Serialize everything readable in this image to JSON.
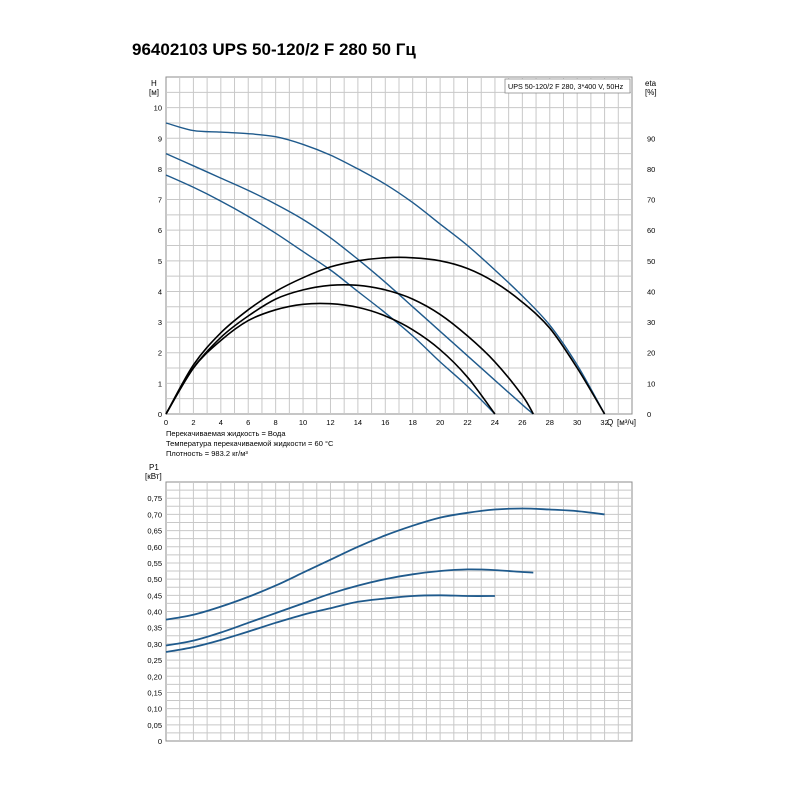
{
  "header": {
    "title": "96402103 UPS 50-120/2 F 280 50 Гц"
  },
  "colors": {
    "head_curve": "#1f5a8c",
    "efficiency_curve": "#000000",
    "power_curve": "#1f5a8c",
    "grid": "#c8c8c8"
  },
  "chart_data": [
    {
      "type": "line",
      "title": "96402103 UPS 50-120/2 F 280 50 Гц",
      "legend_box": "UPS 50-120/2 F 280, 3*400 V, 50Hz",
      "ylabel_left": [
        "H",
        "[м]"
      ],
      "ylabel_right": [
        "eta",
        "[%]"
      ],
      "xlabel": [
        "Q",
        "[м³/ч]"
      ],
      "xlim": [
        0,
        34
      ],
      "ylim": [
        0,
        11
      ],
      "ylim_right": [
        0,
        110
      ],
      "x_ticks": [
        "0",
        "2",
        "4",
        "6",
        "8",
        "10",
        "12",
        "14",
        "16",
        "18",
        "20",
        "22",
        "24",
        "26",
        "28",
        "30",
        "32"
      ],
      "y_ticks": [
        "0",
        "1",
        "2",
        "3",
        "4",
        "5",
        "6",
        "7",
        "8",
        "9",
        "10"
      ],
      "y_right_ticks": [
        "0",
        "10",
        "20",
        "30",
        "40",
        "50",
        "60",
        "70",
        "80",
        "90"
      ],
      "grid": true,
      "info_lines": [
        "Перекачиваемая жидкость = Вода",
        "Температура перекачиваемой жидкости = 60 °C",
        "Плотность = 983.2 кг/м³"
      ],
      "series": [
        {
          "kind": "head",
          "x": [
            0,
            2,
            4,
            6,
            8,
            10,
            12,
            14,
            16,
            18,
            20,
            22,
            24,
            26,
            28,
            30,
            32
          ],
          "y": [
            9.5,
            9.25,
            9.2,
            9.15,
            9.05,
            8.8,
            8.45,
            8.0,
            7.5,
            6.9,
            6.2,
            5.5,
            4.7,
            3.85,
            2.9,
            1.6,
            0
          ]
        },
        {
          "kind": "head",
          "x": [
            0,
            2,
            4,
            6,
            8,
            10,
            12,
            14,
            16,
            18,
            20,
            22,
            24,
            26,
            26.8
          ],
          "y": [
            8.5,
            8.1,
            7.7,
            7.3,
            6.85,
            6.35,
            5.75,
            5.05,
            4.3,
            3.5,
            2.7,
            1.9,
            1.1,
            0.3,
            0
          ]
        },
        {
          "kind": "head",
          "x": [
            0,
            2,
            4,
            6,
            8,
            10,
            12,
            14,
            16,
            18,
            20,
            22,
            24
          ],
          "y": [
            7.8,
            7.4,
            6.95,
            6.45,
            5.9,
            5.3,
            4.7,
            4.0,
            3.3,
            2.55,
            1.7,
            0.9,
            0
          ]
        },
        {
          "kind": "efficiency",
          "x": [
            0,
            2,
            4,
            6,
            8,
            10,
            12,
            14,
            16,
            18,
            20,
            22,
            24,
            26,
            28,
            30,
            32
          ],
          "y": [
            0,
            16,
            26.5,
            34,
            40,
            44.5,
            48,
            50,
            51,
            51,
            50,
            47.5,
            43,
            36.5,
            28,
            15,
            0
          ]
        },
        {
          "kind": "efficiency",
          "x": [
            0,
            2,
            4,
            6,
            8,
            10,
            12,
            14,
            16,
            18,
            20,
            22,
            24,
            26,
            26.8
          ],
          "y": [
            0,
            15,
            25,
            32,
            37.5,
            40.5,
            42,
            42,
            40.5,
            37.5,
            32.5,
            25.5,
            17,
            6,
            0
          ]
        },
        {
          "kind": "efficiency",
          "x": [
            0,
            2,
            4,
            6,
            8,
            10,
            12,
            14,
            16,
            18,
            20,
            22,
            24
          ],
          "y": [
            0,
            15,
            24,
            30.5,
            34,
            35.8,
            36,
            34.8,
            32,
            27.5,
            21,
            12,
            0
          ]
        }
      ]
    },
    {
      "type": "line",
      "ylabel": [
        "P1",
        "[кВт]"
      ],
      "xlim": [
        0,
        34
      ],
      "ylim": [
        0,
        0.8
      ],
      "y_ticks": [
        "0",
        "0,05",
        "0,10",
        "0,15",
        "0,20",
        "0,25",
        "0,30",
        "0,35",
        "0,40",
        "0,45",
        "0,50",
        "0,55",
        "0,60",
        "0,65",
        "0,70",
        "0,75"
      ],
      "grid": true,
      "series": [
        {
          "kind": "power",
          "x": [
            0,
            2,
            4,
            6,
            8,
            10,
            12,
            14,
            16,
            18,
            20,
            22,
            24,
            26,
            28,
            30,
            32
          ],
          "y": [
            0.375,
            0.39,
            0.415,
            0.445,
            0.48,
            0.52,
            0.56,
            0.6,
            0.635,
            0.665,
            0.69,
            0.705,
            0.715,
            0.718,
            0.715,
            0.71,
            0.7
          ]
        },
        {
          "kind": "power",
          "x": [
            0,
            2,
            4,
            6,
            8,
            10,
            12,
            14,
            16,
            18,
            20,
            22,
            24,
            26,
            26.8
          ],
          "y": [
            0.295,
            0.31,
            0.335,
            0.365,
            0.395,
            0.425,
            0.455,
            0.48,
            0.5,
            0.515,
            0.525,
            0.53,
            0.528,
            0.522,
            0.52
          ]
        },
        {
          "kind": "power",
          "x": [
            0,
            2,
            4,
            6,
            8,
            10,
            12,
            14,
            16,
            18,
            20,
            22,
            24
          ],
          "y": [
            0.275,
            0.29,
            0.312,
            0.338,
            0.365,
            0.39,
            0.41,
            0.43,
            0.44,
            0.448,
            0.45,
            0.448,
            0.448
          ]
        }
      ]
    }
  ]
}
